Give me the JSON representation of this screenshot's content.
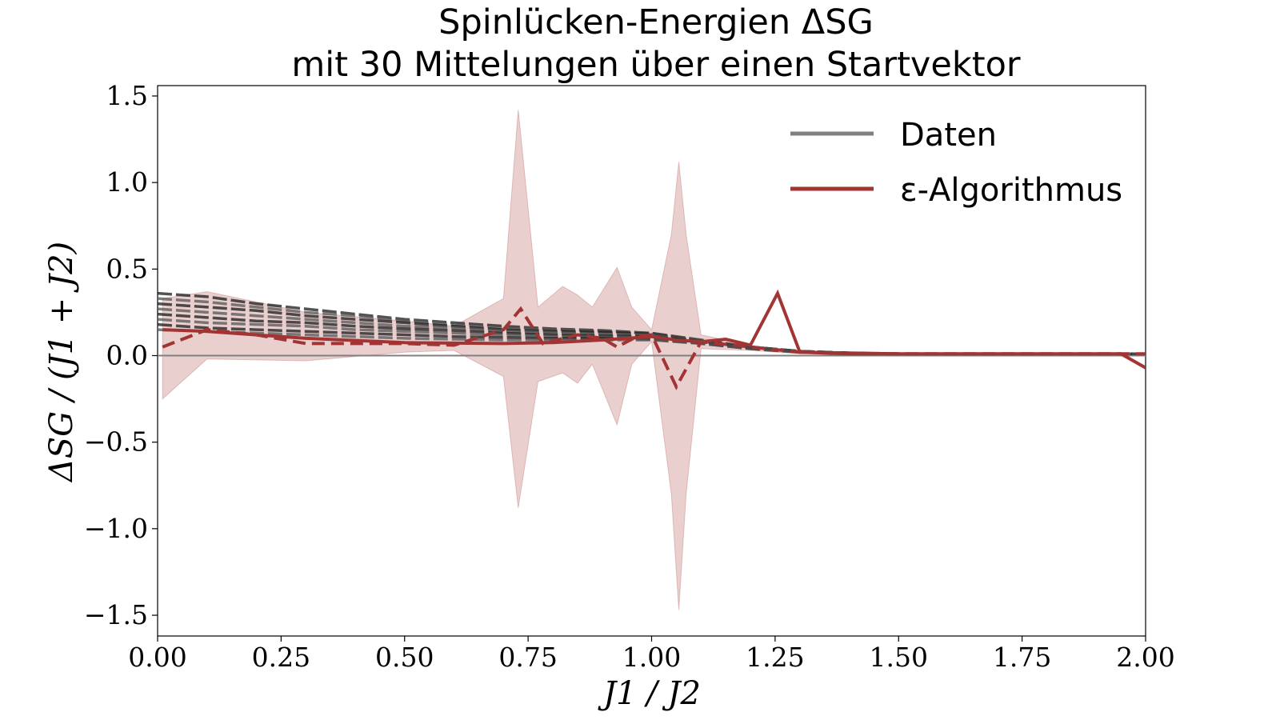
{
  "chart_data": {
    "type": "line",
    "title": "Spinlücken-Energien ΔSG",
    "subtitle": "mit 30 Mittelungen über einen Startvektor",
    "xlabel": "J1 / J2",
    "ylabel": "ΔSG / (J1 + J2)",
    "xlim": [
      0.0,
      2.0
    ],
    "ylim": [
      -1.62,
      1.56
    ],
    "xticks": [
      "0.00",
      "0.25",
      "0.50",
      "0.75",
      "1.00",
      "1.25",
      "1.50",
      "1.75",
      "2.00"
    ],
    "yticks": [
      "−1.5",
      "−1.0",
      "−0.5",
      "0.0",
      "0.5",
      "1.0",
      "1.5"
    ],
    "ytick_values": [
      -1.5,
      -1.0,
      -0.5,
      0.0,
      0.5,
      1.0,
      1.5
    ],
    "legend_position": "top-right",
    "grid": false,
    "colors": {
      "data": "#808080",
      "data_lines": "#1a1a1a",
      "epsilon": "#a33434",
      "band": "#d9a7a7",
      "zero_line": "#808080"
    },
    "legend": [
      {
        "label": "Daten",
        "color": "#808080"
      },
      {
        "label": "ε-Algorithmus",
        "color": "#a33434"
      }
    ],
    "data_series": [
      {
        "x": [
          0.0,
          0.1,
          0.2,
          0.3,
          0.4,
          0.5,
          0.6,
          0.7,
          0.8,
          0.9,
          1.0,
          1.1,
          1.2,
          1.3,
          1.4,
          1.5,
          1.75,
          2.0
        ],
        "y": [
          0.36,
          0.34,
          0.3,
          0.27,
          0.24,
          0.21,
          0.19,
          0.17,
          0.155,
          0.145,
          0.13,
          0.09,
          0.05,
          0.025,
          0.015,
          0.01,
          0.01,
          0.01
        ]
      },
      {
        "x": [
          0.0,
          0.1,
          0.2,
          0.3,
          0.4,
          0.5,
          0.6,
          0.7,
          0.8,
          0.9,
          1.0,
          1.1,
          1.2,
          1.3,
          1.4,
          1.5,
          1.75,
          2.0
        ],
        "y": [
          0.33,
          0.31,
          0.28,
          0.25,
          0.23,
          0.2,
          0.18,
          0.16,
          0.15,
          0.14,
          0.13,
          0.09,
          0.05,
          0.025,
          0.015,
          0.01,
          0.01,
          0.01
        ]
      },
      {
        "x": [
          0.0,
          0.1,
          0.2,
          0.3,
          0.4,
          0.5,
          0.6,
          0.7,
          0.8,
          0.9,
          1.0,
          1.1,
          1.2,
          1.3,
          1.4,
          1.5,
          1.75,
          2.0
        ],
        "y": [
          0.3,
          0.28,
          0.26,
          0.23,
          0.21,
          0.19,
          0.17,
          0.15,
          0.14,
          0.135,
          0.125,
          0.085,
          0.05,
          0.025,
          0.015,
          0.01,
          0.01,
          0.01
        ]
      },
      {
        "x": [
          0.0,
          0.1,
          0.2,
          0.3,
          0.4,
          0.5,
          0.6,
          0.7,
          0.8,
          0.9,
          1.0,
          1.1,
          1.2,
          1.3,
          1.4,
          1.5,
          1.75,
          2.0
        ],
        "y": [
          0.27,
          0.25,
          0.23,
          0.21,
          0.19,
          0.17,
          0.16,
          0.14,
          0.13,
          0.125,
          0.12,
          0.085,
          0.05,
          0.025,
          0.015,
          0.01,
          0.01,
          0.01
        ]
      },
      {
        "x": [
          0.0,
          0.1,
          0.2,
          0.3,
          0.4,
          0.5,
          0.6,
          0.7,
          0.8,
          0.9,
          1.0,
          1.1,
          1.2,
          1.3,
          1.4,
          1.5,
          1.75,
          2.0
        ],
        "y": [
          0.24,
          0.22,
          0.2,
          0.19,
          0.17,
          0.155,
          0.145,
          0.13,
          0.12,
          0.115,
          0.11,
          0.08,
          0.045,
          0.025,
          0.015,
          0.01,
          0.01,
          0.01
        ]
      },
      {
        "x": [
          0.0,
          0.1,
          0.2,
          0.3,
          0.4,
          0.5,
          0.6,
          0.7,
          0.8,
          0.9,
          1.0,
          1.1,
          1.2,
          1.3,
          1.4,
          1.5,
          1.75,
          2.0
        ],
        "y": [
          0.21,
          0.19,
          0.18,
          0.17,
          0.15,
          0.14,
          0.13,
          0.12,
          0.11,
          0.105,
          0.1,
          0.075,
          0.045,
          0.025,
          0.015,
          0.01,
          0.01,
          0.01
        ]
      },
      {
        "x": [
          0.0,
          0.1,
          0.2,
          0.3,
          0.4,
          0.5,
          0.6,
          0.7,
          0.8,
          0.9,
          1.0,
          1.1,
          1.2,
          1.3,
          1.4,
          1.5,
          1.75,
          2.0
        ],
        "y": [
          0.18,
          0.16,
          0.15,
          0.14,
          0.13,
          0.12,
          0.11,
          0.105,
          0.1,
          0.1,
          0.095,
          0.07,
          0.04,
          0.02,
          0.015,
          0.01,
          0.01,
          0.01
        ]
      },
      {
        "x": [
          0.0,
          0.1,
          0.2,
          0.3,
          0.4,
          0.5,
          0.6,
          0.7,
          0.8,
          0.9,
          1.0,
          1.1,
          1.2,
          1.3,
          1.4,
          1.5,
          1.75,
          2.0
        ],
        "y": [
          0.15,
          0.14,
          0.13,
          0.12,
          0.11,
          0.1,
          0.095,
          0.09,
          0.09,
          0.09,
          0.09,
          0.07,
          0.04,
          0.02,
          0.015,
          0.01,
          0.01,
          0.01
        ]
      }
    ],
    "band": {
      "x": [
        0.01,
        0.1,
        0.3,
        0.5,
        0.6,
        0.7,
        0.73,
        0.77,
        0.82,
        0.85,
        0.88,
        0.93,
        0.96,
        1.0,
        1.04,
        1.055,
        1.07,
        1.1,
        1.2,
        1.3,
        1.5,
        2.0
      ],
      "upper": [
        0.33,
        0.37,
        0.25,
        0.2,
        0.17,
        0.33,
        1.42,
        0.28,
        0.4,
        0.35,
        0.28,
        0.51,
        0.28,
        0.15,
        0.7,
        1.12,
        0.7,
        0.12,
        0.06,
        0.02,
        0.01,
        0.01
      ],
      "lower": [
        -0.25,
        -0.02,
        -0.03,
        0.02,
        0.03,
        -0.12,
        -0.88,
        -0.15,
        -0.1,
        -0.16,
        -0.05,
        -0.4,
        -0.05,
        0.08,
        -0.8,
        -1.47,
        -0.8,
        0.04,
        0.03,
        0.01,
        0.0,
        0.0
      ]
    },
    "epsilon_solid": {
      "x": [
        0.01,
        0.1,
        0.3,
        0.5,
        0.7,
        0.8,
        0.9,
        0.95,
        1.0,
        1.05,
        1.1,
        1.15,
        1.2,
        1.255,
        1.3,
        1.4,
        1.5,
        1.75,
        1.95,
        2.0
      ],
      "y": [
        0.15,
        0.14,
        0.1,
        0.075,
        0.07,
        0.075,
        0.09,
        0.1,
        0.11,
        0.09,
        0.08,
        0.095,
        0.06,
        0.36,
        0.02,
        0.01,
        0.01,
        0.01,
        0.01,
        -0.07
      ]
    },
    "epsilon_dashed": {
      "x": [
        0.01,
        0.1,
        0.2,
        0.3,
        0.5,
        0.6,
        0.7,
        0.735,
        0.78,
        0.85,
        0.9,
        0.93,
        0.97,
        1.0,
        1.05,
        1.1,
        1.2,
        1.3,
        1.5,
        2.0
      ],
      "y": [
        0.05,
        0.15,
        0.12,
        0.07,
        0.07,
        0.06,
        0.15,
        0.27,
        0.07,
        0.12,
        0.1,
        0.05,
        0.11,
        0.12,
        -0.18,
        0.08,
        0.05,
        0.02,
        0.01,
        0.01
      ]
    }
  }
}
